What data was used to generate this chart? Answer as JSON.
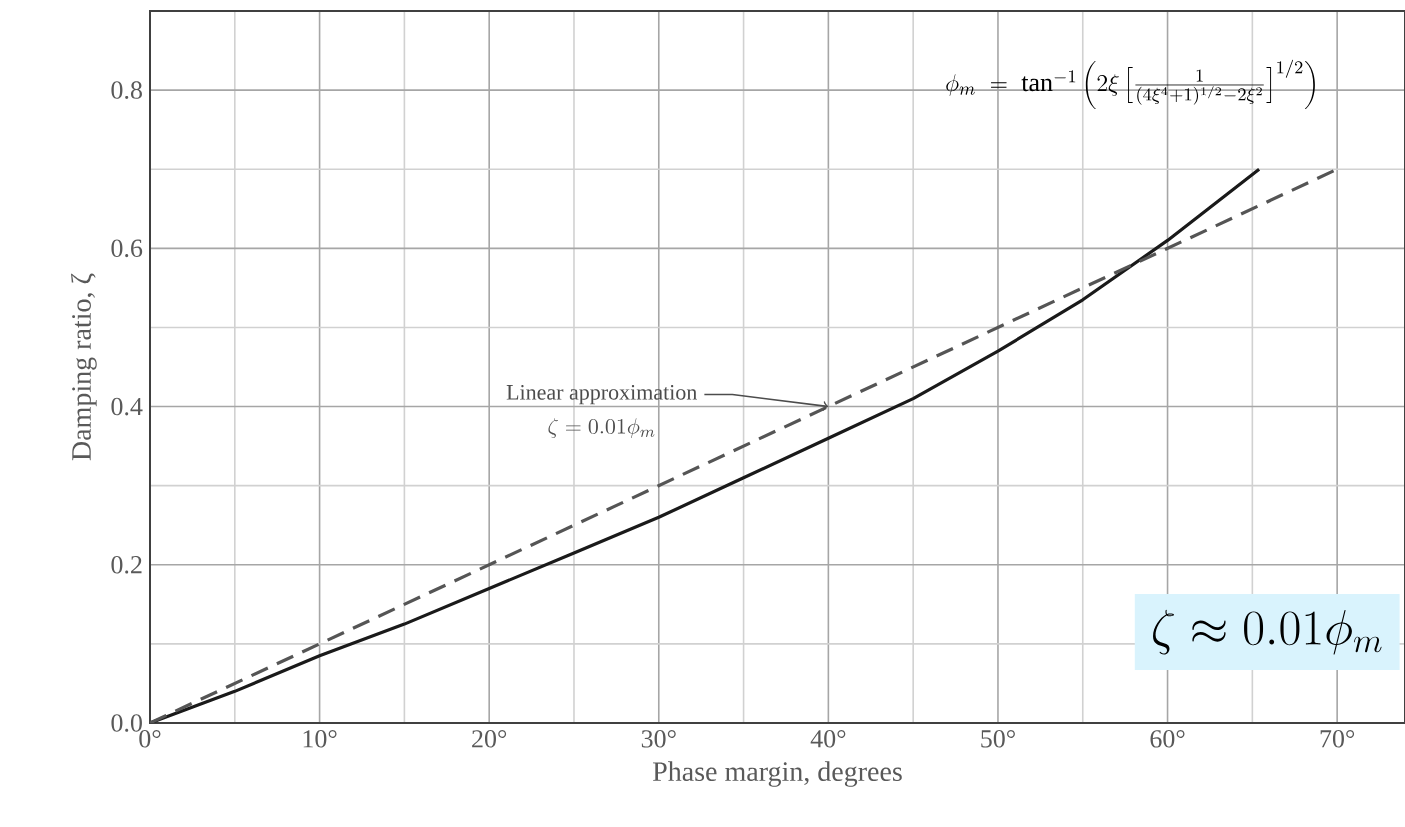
{
  "chart_data": {
    "type": "line",
    "xlabel": "Phase margin, degrees",
    "ylabel": "Damping ratio, ζ",
    "series": [
      {
        "x": [
          0,
          5,
          10,
          15,
          20,
          25,
          30,
          35,
          40,
          45,
          50,
          55,
          60,
          65.4
        ],
        "values": [
          0,
          0.04,
          0.085,
          0.125,
          0.17,
          0.215,
          0.26,
          0.31,
          0.36,
          0.41,
          0.47,
          0.535,
          0.61,
          0.7
        ],
        "color": "#1a1a1a",
        "line_style": "solid"
      },
      {
        "x": [
          0,
          70
        ],
        "values": [
          0,
          0.7
        ],
        "color": "#555555",
        "line_style": "dashed"
      }
    ],
    "xlim": [
      0,
      74
    ],
    "ylim": [
      0,
      0.9
    ],
    "xticks": [
      {
        "value": 0,
        "label": "0°"
      },
      {
        "value": 10,
        "label": "10°"
      },
      {
        "value": 20,
        "label": "20°"
      },
      {
        "value": 30,
        "label": "30°"
      },
      {
        "value": 40,
        "label": "40°"
      },
      {
        "value": 50,
        "label": "50°"
      },
      {
        "value": 60,
        "label": "60°"
      },
      {
        "value": 70,
        "label": "70°"
      }
    ],
    "yticks": [
      {
        "value": 0,
        "label": "0.0"
      },
      {
        "value": 0.2,
        "label": "0.2"
      },
      {
        "value": 0.4,
        "label": "0.4"
      },
      {
        "value": 0.6,
        "label": "0.6"
      },
      {
        "value": 0.8,
        "label": "0.8"
      }
    ],
    "grid": true,
    "marker": "none",
    "annotations": [
      {
        "text": "Linear approximation",
        "x": 40,
        "y": 0.4
      },
      "\\zeta = 0.01\\phi_{m}",
      "\\phi_m \\;=\\; \\tan^{-1}\\left(2\\xi\\left[\\frac{1}{(4\\xi^4+1)^{1/2}-2\\xi^2}\\right]^{1/2}\\right)",
      "\\zeta \\approx 0.01\\phi_m"
    ]
  }
}
